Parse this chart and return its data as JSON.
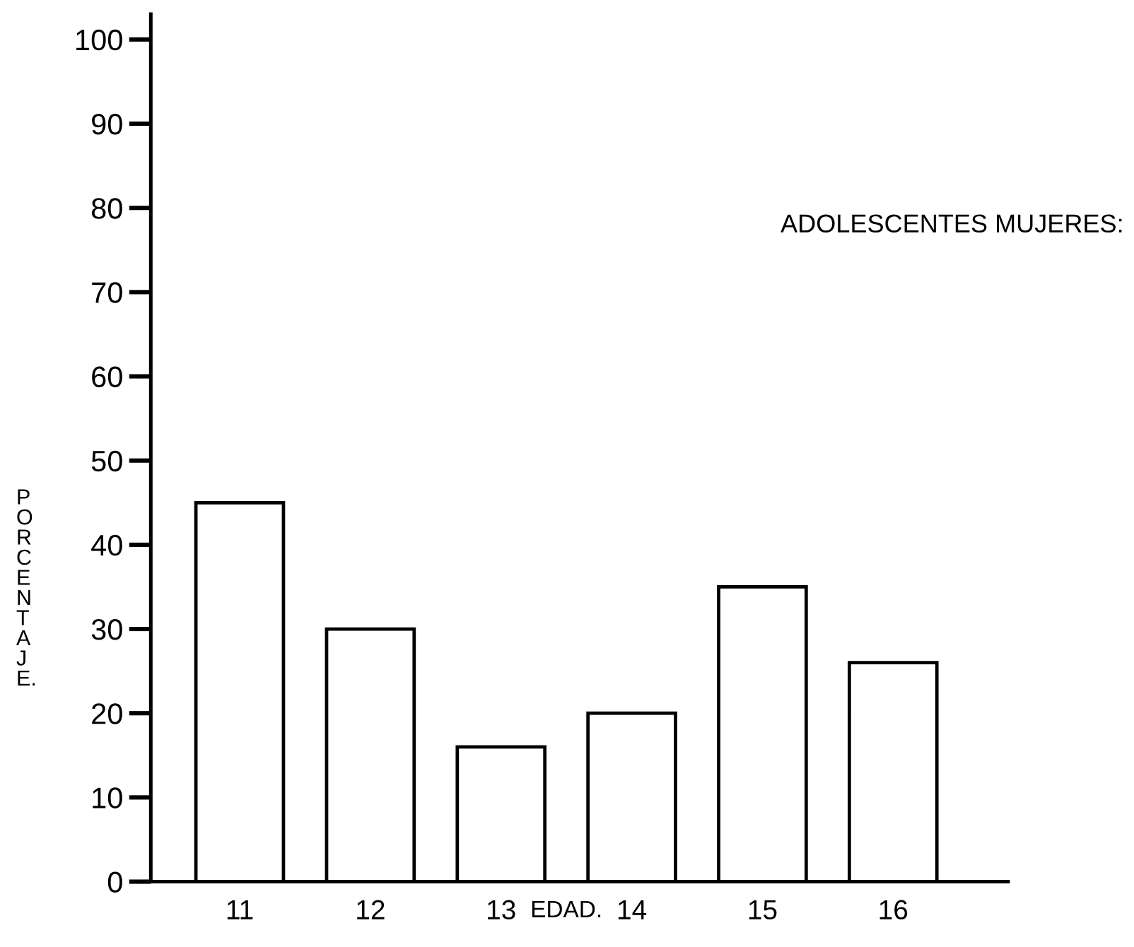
{
  "chart_data": {
    "type": "bar",
    "title": "ADOLESCENTES MUJERES:",
    "xlabel": "EDAD.",
    "ylabel": "PORCENTAJE.",
    "categories": [
      "11",
      "12",
      "13",
      "14",
      "15",
      "16"
    ],
    "values": [
      45,
      30,
      16,
      20,
      35,
      26
    ],
    "color": "#ffffff",
    "ylim": [
      0,
      103
    ],
    "yticks": [
      0,
      10,
      20,
      30,
      40,
      50,
      60,
      70,
      80,
      90,
      100
    ]
  }
}
